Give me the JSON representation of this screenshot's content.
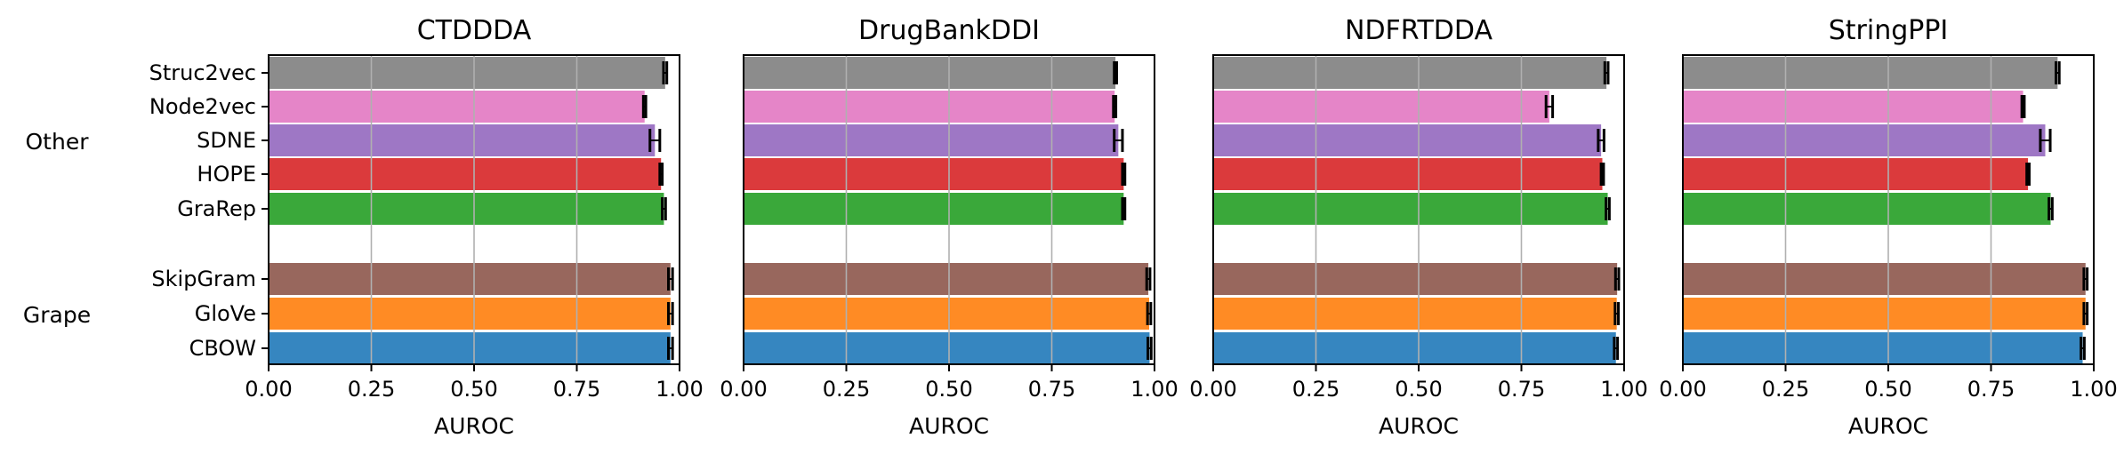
{
  "chart_data": {
    "type": "bar",
    "orientation": "horizontal",
    "xlabel": "AUROC",
    "xlim": [
      0,
      1
    ],
    "xticks": [
      "0.00",
      "0.25",
      "0.50",
      "0.75",
      "1.00"
    ],
    "grid": "vertical",
    "methods": [
      {
        "name": "Struc2vec",
        "group": "Other",
        "color": "#8c8c8c"
      },
      {
        "name": "Node2vec",
        "group": "Other",
        "color": "#e585c8"
      },
      {
        "name": "SDNE",
        "group": "Other",
        "color": "#9e77c5"
      },
      {
        "name": "HOPE",
        "group": "Other",
        "color": "#db3a3c"
      },
      {
        "name": "GraRep",
        "group": "Other",
        "color": "#3aa83a"
      },
      {
        "name": "SkipGram",
        "group": "Grape",
        "color": "#98675d"
      },
      {
        "name": "GloVe",
        "group": "Grape",
        "color": "#ff8b24"
      },
      {
        "name": "CBOW",
        "group": "Grape",
        "color": "#3686c0"
      }
    ],
    "groups": [
      "Other",
      "Grape"
    ],
    "panels": [
      {
        "title": "CTDDDA",
        "values": [
          0.965,
          0.915,
          0.94,
          0.955,
          0.962,
          0.978,
          0.978,
          0.978
        ],
        "errors": [
          0.004,
          0.003,
          0.012,
          0.003,
          0.004,
          0.005,
          0.005,
          0.005
        ]
      },
      {
        "title": "DrugBankDDI",
        "values": [
          0.905,
          0.903,
          0.912,
          0.925,
          0.925,
          0.985,
          0.987,
          0.988
        ],
        "errors": [
          0.003,
          0.003,
          0.01,
          0.003,
          0.003,
          0.004,
          0.004,
          0.004
        ]
      },
      {
        "title": "NDFRTDDA",
        "values": [
          0.957,
          0.818,
          0.944,
          0.947,
          0.96,
          0.983,
          0.982,
          0.98
        ],
        "errors": [
          0.004,
          0.008,
          0.007,
          0.003,
          0.004,
          0.004,
          0.004,
          0.004
        ]
      },
      {
        "title": "StringPPI",
        "values": [
          0.912,
          0.828,
          0.882,
          0.84,
          0.895,
          0.98,
          0.98,
          0.973
        ],
        "errors": [
          0.004,
          0.003,
          0.012,
          0.003,
          0.004,
          0.004,
          0.004,
          0.004
        ]
      }
    ]
  }
}
